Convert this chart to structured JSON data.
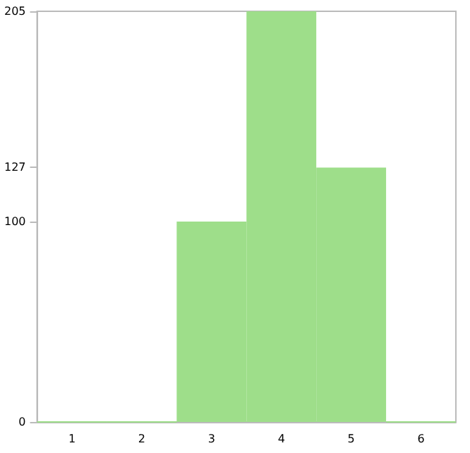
{
  "chart_data": {
    "type": "bar",
    "categories": [
      "1",
      "2",
      "3",
      "4",
      "5",
      "6"
    ],
    "values": [
      0,
      0,
      100,
      205,
      127,
      0
    ],
    "color": "#9ede8a",
    "ylim": [
      0,
      205
    ],
    "yticks": [
      0,
      100,
      127,
      205
    ],
    "grid": false
  }
}
